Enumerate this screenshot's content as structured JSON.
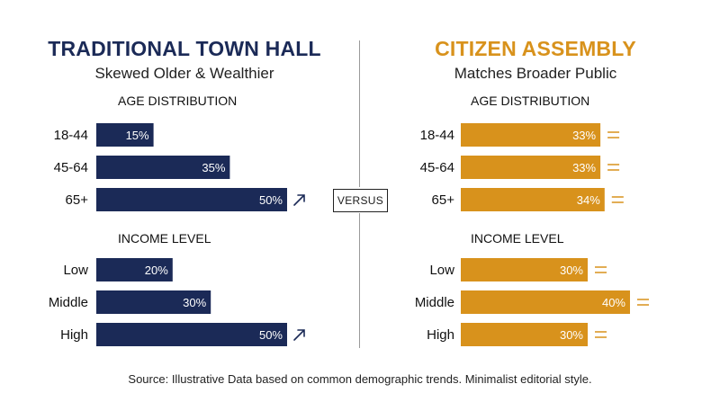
{
  "left_panel": {
    "title": "TRADITIONAL TOWN HALL",
    "subtitle": "Skewed Older & Wealthier"
  },
  "right_panel": {
    "title": "CITIZEN ASSEMBLY",
    "subtitle": "Matches Broader Public"
  },
  "versus_label": "VERSUS",
  "source": "Source: Illustrative Data based on common demographic trends. Minimalist editorial style.",
  "colors": {
    "traditional": "#1b2a57",
    "citizen": "#d8921c"
  },
  "chart_data": [
    {
      "type": "bar",
      "orientation": "horizontal",
      "panel": "left",
      "title": "AGE DISTRIBUTION",
      "categories": [
        "18-44",
        "45-64",
        "65+"
      ],
      "values": [
        15,
        35,
        50
      ],
      "value_suffix": "%",
      "markers": [
        "",
        "",
        "arrow-up-right-icon"
      ],
      "color": "#1b2a57"
    },
    {
      "type": "bar",
      "orientation": "horizontal",
      "panel": "left",
      "title": "INCOME LEVEL",
      "categories": [
        "Low",
        "Middle",
        "High"
      ],
      "values": [
        20,
        30,
        50
      ],
      "value_suffix": "%",
      "markers": [
        "",
        "",
        "arrow-up-right-icon"
      ],
      "color": "#1b2a57"
    },
    {
      "type": "bar",
      "orientation": "horizontal",
      "panel": "right",
      "title": "AGE DISTRIBUTION",
      "categories": [
        "18-44",
        "45-64",
        "65+"
      ],
      "values": [
        33,
        33,
        34
      ],
      "value_suffix": "%",
      "markers": [
        "equals-icon",
        "equals-icon",
        "equals-icon"
      ],
      "color": "#d8921c"
    },
    {
      "type": "bar",
      "orientation": "horizontal",
      "panel": "right",
      "title": "INCOME LEVEL",
      "categories": [
        "Low",
        "Middle",
        "High"
      ],
      "values": [
        30,
        40,
        30
      ],
      "value_suffix": "%",
      "markers": [
        "equals-icon",
        "equals-icon",
        "equals-icon"
      ],
      "color": "#d8921c"
    }
  ]
}
